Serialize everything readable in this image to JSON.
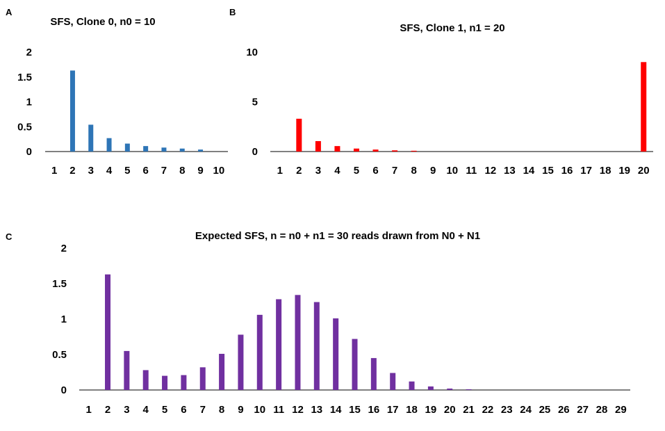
{
  "chart_data": [
    {
      "panel": "A",
      "type": "bar",
      "title": "SFS, Clone 0, n0 = 10",
      "color": "#2e75b6",
      "categories": [
        "1",
        "2",
        "3",
        "4",
        "5",
        "6",
        "7",
        "8",
        "9",
        "10"
      ],
      "values": [
        0,
        1.63,
        0.54,
        0.27,
        0.16,
        0.11,
        0.08,
        0.06,
        0.04,
        0
      ],
      "ylim": [
        0,
        2
      ],
      "yticks": [
        "0",
        "0.5",
        "1",
        "1.5",
        "2"
      ],
      "xlabel": "",
      "ylabel": ""
    },
    {
      "panel": "B",
      "type": "bar",
      "title": "SFS, Clone 1, n1 = 20",
      "color": "#ff0000",
      "categories": [
        "1",
        "2",
        "3",
        "4",
        "5",
        "6",
        "7",
        "8",
        "9",
        "10",
        "11",
        "12",
        "13",
        "14",
        "15",
        "16",
        "17",
        "18",
        "19",
        "20"
      ],
      "values": [
        0,
        3.3,
        1.05,
        0.55,
        0.3,
        0.2,
        0.12,
        0.08,
        0,
        0,
        0,
        0,
        0,
        0,
        0,
        0,
        0,
        0,
        0,
        9.0
      ],
      "ylim": [
        0,
        10
      ],
      "yticks": [
        "0",
        "5",
        "10"
      ],
      "xlabel": "",
      "ylabel": ""
    },
    {
      "panel": "C",
      "type": "bar",
      "title": "Expected SFS, n = n0 + n1 = 30 reads drawn from N0 + N1",
      "color": "#7030a0",
      "categories": [
        "1",
        "2",
        "3",
        "4",
        "5",
        "6",
        "7",
        "8",
        "9",
        "10",
        "11",
        "12",
        "13",
        "14",
        "15",
        "16",
        "17",
        "18",
        "19",
        "20",
        "21",
        "22",
        "23",
        "24",
        "25",
        "26",
        "27",
        "28",
        "29"
      ],
      "values": [
        0,
        1.63,
        0.55,
        0.28,
        0.2,
        0.21,
        0.32,
        0.51,
        0.78,
        1.06,
        1.28,
        1.34,
        1.24,
        1.01,
        0.72,
        0.45,
        0.24,
        0.12,
        0.05,
        0.02,
        0.01,
        0,
        0,
        0,
        0,
        0,
        0,
        0,
        0
      ],
      "ylim": [
        0,
        2
      ],
      "yticks": [
        "0",
        "0.5",
        "1",
        "1.5",
        "2"
      ],
      "xlabel": "",
      "ylabel": ""
    }
  ]
}
